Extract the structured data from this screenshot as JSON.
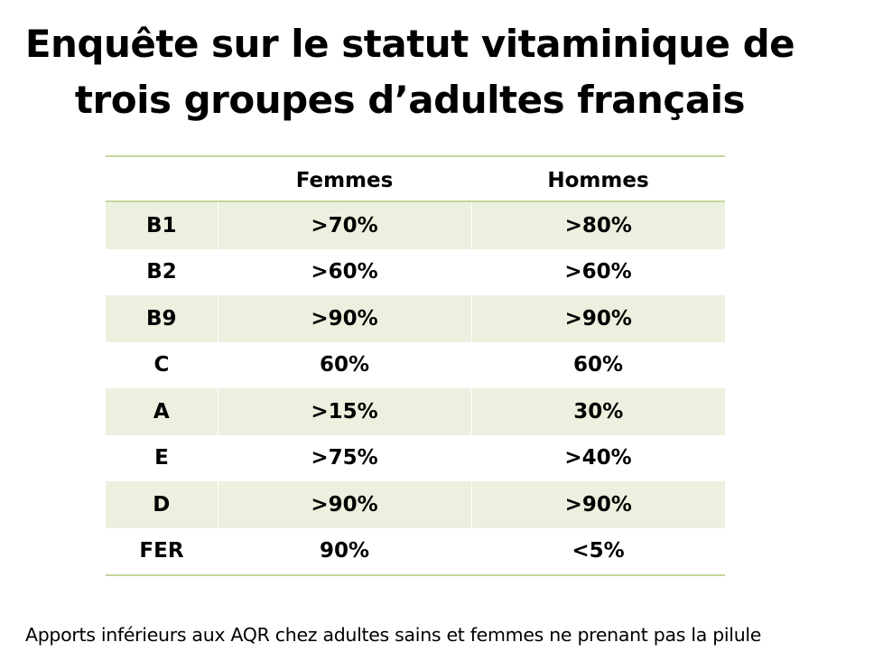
{
  "title_line1": "Enquête sur le statut vitaminique de",
  "title_line2": "trois groupes d’adultes français",
  "table": {
    "headers": [
      "",
      "Femmes",
      "Hommes"
    ],
    "rows": [
      {
        "label": "B1",
        "femmes": ">70%",
        "hommes": ">80%"
      },
      {
        "label": "B2",
        "femmes": ">60%",
        "hommes": ">60%"
      },
      {
        "label": "B9",
        "femmes": ">90%",
        "hommes": ">90%"
      },
      {
        "label": "C",
        "femmes": "60%",
        "hommes": "60%"
      },
      {
        "label": "A",
        "femmes": ">15%",
        "hommes": "30%"
      },
      {
        "label": "E",
        "femmes": ">75%",
        "hommes": ">40%"
      },
      {
        "label": "D",
        "femmes": ">90%",
        "hommes": ">90%"
      },
      {
        "label": "FER",
        "femmes": "90%",
        "hommes": "<5%"
      }
    ]
  },
  "footnote": "Apports inférieurs aux AQR chez adultes sains et femmes ne prenant pas la pilule",
  "colors": {
    "row_band": "#ebf1de",
    "rule": "#c4d79b",
    "text": "#000000"
  }
}
